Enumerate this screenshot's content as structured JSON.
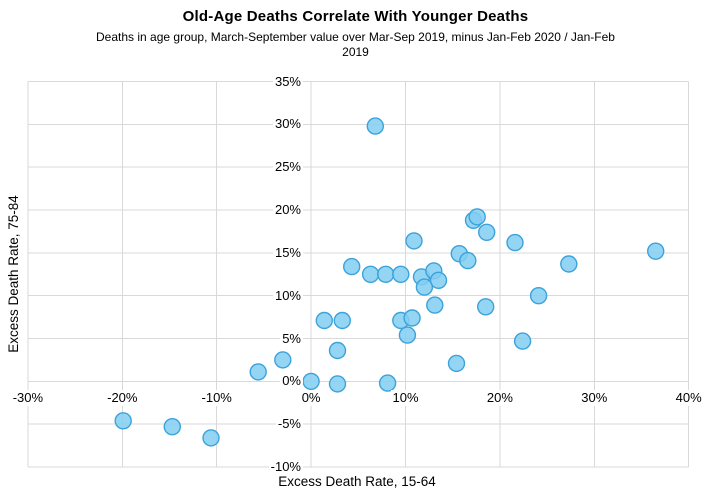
{
  "chart_data": {
    "type": "scatter",
    "title": "Old-Age Deaths Correlate With Younger Deaths",
    "subtitle_lines": [
      "Deaths in age group, March-September value over Mar-Sep 2019, minus Jan-Feb 2020 / Jan-Feb",
      "2019"
    ],
    "xlabel": "Excess Death Rate, 15-64",
    "ylabel": "Excess Death Rate, 75-84",
    "xlim": [
      -30,
      40
    ],
    "ylim": [
      -10,
      35
    ],
    "grid": true,
    "legend": "none",
    "grid_color": "#D9D9D9",
    "marker": {
      "fill": "#82CEF2",
      "stroke": "#3BA3DA",
      "radius": 8,
      "opacity": 0.85
    },
    "x_ticks": [
      {
        "value": -30,
        "label": "-30%"
      },
      {
        "value": -20,
        "label": "-20%"
      },
      {
        "value": -10,
        "label": "-10%"
      },
      {
        "value": 0,
        "label": "0%"
      },
      {
        "value": 10,
        "label": "10%"
      },
      {
        "value": 20,
        "label": "20%"
      },
      {
        "value": 30,
        "label": "30%"
      },
      {
        "value": 40,
        "label": "40%"
      }
    ],
    "y_ticks": [
      {
        "value": -10,
        "label": "-10%"
      },
      {
        "value": -5,
        "label": "-5%"
      },
      {
        "value": 0,
        "label": "0%"
      },
      {
        "value": 5,
        "label": "5%"
      },
      {
        "value": 10,
        "label": "10%"
      },
      {
        "value": 15,
        "label": "15%"
      },
      {
        "value": 20,
        "label": "20%"
      },
      {
        "value": 25,
        "label": "25%"
      },
      {
        "value": 30,
        "label": "30%"
      },
      {
        "value": 35,
        "label": "35%"
      }
    ],
    "points": [
      [
        -19.9,
        -4.6
      ],
      [
        -14.7,
        -5.3
      ],
      [
        -10.6,
        -6.6
      ],
      [
        -5.6,
        1.1
      ],
      [
        -3.0,
        2.5
      ],
      [
        0.0,
        0.0
      ],
      [
        1.4,
        7.1
      ],
      [
        2.8,
        -0.3
      ],
      [
        2.8,
        3.6
      ],
      [
        3.3,
        7.1
      ],
      [
        4.3,
        13.4
      ],
      [
        6.3,
        12.5
      ],
      [
        6.8,
        29.8
      ],
      [
        7.9,
        12.5
      ],
      [
        8.1,
        -0.2
      ],
      [
        9.5,
        7.1
      ],
      [
        9.5,
        12.5
      ],
      [
        10.2,
        5.4
      ],
      [
        10.7,
        7.4
      ],
      [
        10.9,
        16.4
      ],
      [
        11.7,
        12.2
      ],
      [
        12.0,
        11.0
      ],
      [
        13.0,
        12.9
      ],
      [
        13.1,
        8.9
      ],
      [
        13.5,
        11.8
      ],
      [
        15.4,
        2.1
      ],
      [
        15.7,
        14.9
      ],
      [
        16.6,
        14.1
      ],
      [
        17.2,
        18.8
      ],
      [
        17.6,
        19.2
      ],
      [
        18.5,
        8.7
      ],
      [
        18.6,
        17.4
      ],
      [
        21.6,
        16.2
      ],
      [
        22.4,
        4.7
      ],
      [
        24.1,
        10.0
      ],
      [
        27.3,
        13.7
      ],
      [
        36.5,
        15.2
      ]
    ]
  }
}
